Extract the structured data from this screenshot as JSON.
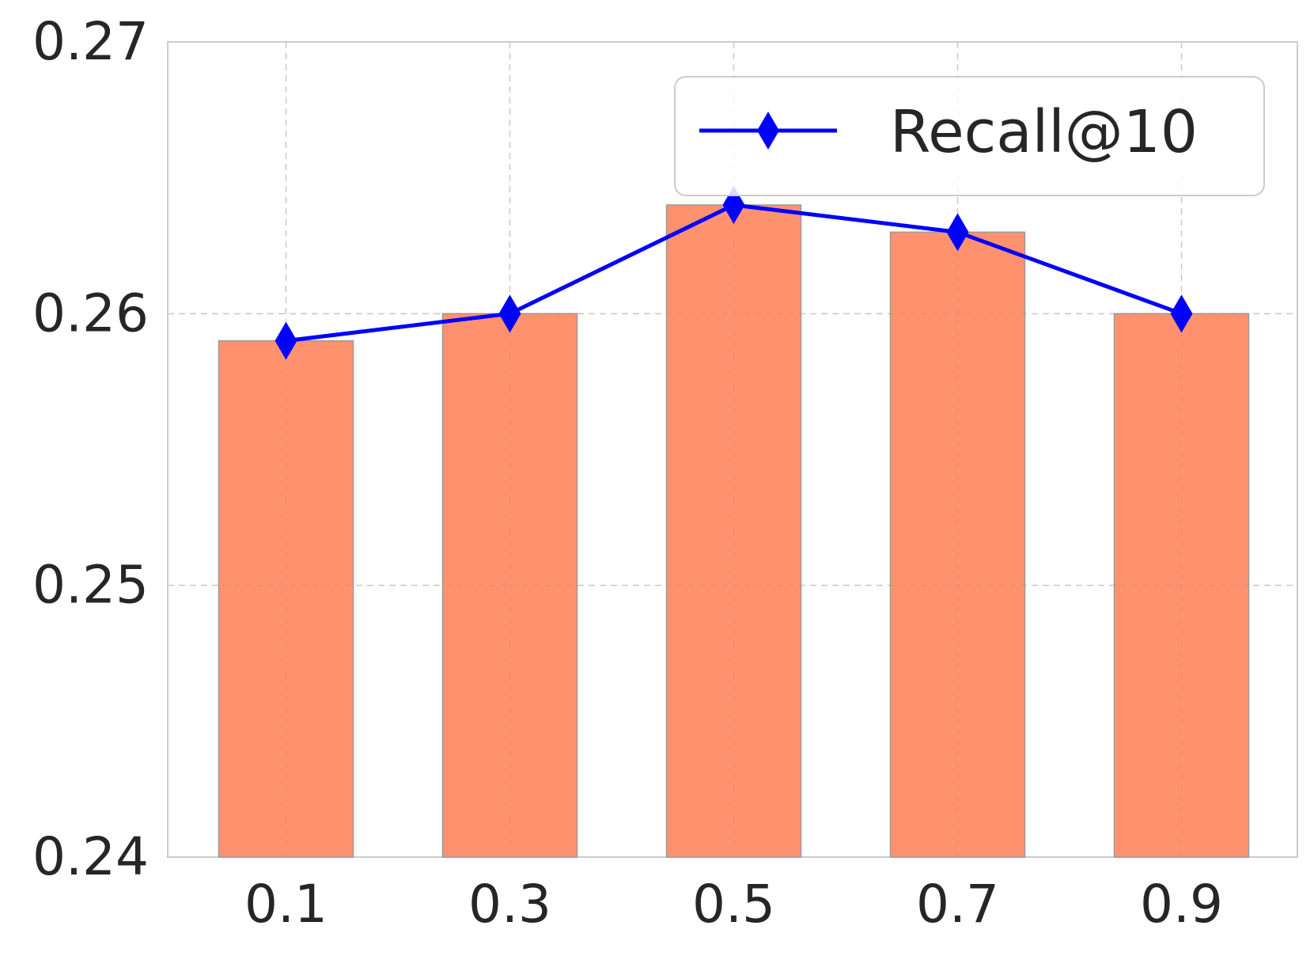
{
  "chart_data": {
    "type": "bar",
    "categories": [
      "0.1",
      "0.3",
      "0.5",
      "0.7",
      "0.9"
    ],
    "values": [
      0.259,
      0.26,
      0.264,
      0.263,
      0.26
    ],
    "line_series": {
      "name": "Recall@10",
      "values": [
        0.259,
        0.26,
        0.264,
        0.263,
        0.26
      ],
      "marker": "diamond"
    },
    "ylim": [
      0.24,
      0.27
    ],
    "yticks": [
      "0.24",
      "0.25",
      "0.26",
      "0.27"
    ],
    "grid": true,
    "legend_position": "top-right",
    "colors": {
      "bar": "#ff8c66",
      "bar_edge": "#9a9a9a",
      "line": "#0000ff",
      "grid": "#dddddd",
      "frame": "#cccccc"
    }
  }
}
